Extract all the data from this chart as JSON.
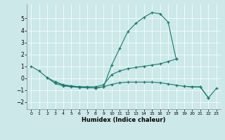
{
  "xlabel": "Humidex (Indice chaleur)",
  "ylabel": "",
  "bg_color": "#cce8e8",
  "line_color": "#1a7a6e",
  "xlim": [
    -0.5,
    23.5
  ],
  "ylim": [
    -2.6,
    6.2
  ],
  "yticks": [
    -2,
    -1,
    0,
    1,
    2,
    3,
    4,
    5
  ],
  "xticks": [
    0,
    1,
    2,
    3,
    4,
    5,
    6,
    7,
    8,
    9,
    10,
    11,
    12,
    13,
    14,
    15,
    16,
    17,
    18,
    19,
    20,
    21,
    22,
    23
  ],
  "lines": [
    {
      "x": [
        0,
        1,
        2,
        3,
        4,
        5,
        6,
        7,
        8,
        9,
        10,
        11,
        12,
        13,
        14,
        15,
        16,
        17,
        18
      ],
      "y": [
        1.0,
        0.6,
        0.05,
        -0.45,
        -0.65,
        -0.72,
        -0.78,
        -0.8,
        -0.82,
        -0.72,
        1.1,
        2.5,
        3.9,
        4.6,
        5.1,
        5.5,
        5.4,
        4.7,
        1.6
      ]
    },
    {
      "x": [
        2,
        3,
        4,
        5,
        6,
        7,
        8,
        9,
        10,
        11,
        12,
        13,
        14,
        15,
        16,
        17,
        18
      ],
      "y": [
        0.05,
        -0.3,
        -0.55,
        -0.65,
        -0.72,
        -0.72,
        -0.72,
        -0.55,
        0.3,
        0.6,
        0.8,
        0.9,
        1.0,
        1.1,
        1.2,
        1.4,
        1.6
      ]
    },
    {
      "x": [
        3,
        4,
        5,
        6,
        7,
        8,
        9,
        10,
        11,
        12,
        13,
        14,
        15,
        16,
        17,
        18,
        19,
        20,
        21,
        22
      ],
      "y": [
        -0.3,
        -0.6,
        -0.67,
        -0.72,
        -0.78,
        -0.82,
        -0.72,
        -0.52,
        -0.38,
        -0.33,
        -0.33,
        -0.33,
        -0.33,
        -0.38,
        -0.48,
        -0.58,
        -0.68,
        -0.73,
        -0.73,
        -1.65
      ]
    },
    {
      "x": [
        19,
        20,
        21,
        22,
        23
      ],
      "y": [
        -0.68,
        -0.73,
        -0.73,
        -1.65,
        -0.85
      ]
    }
  ]
}
